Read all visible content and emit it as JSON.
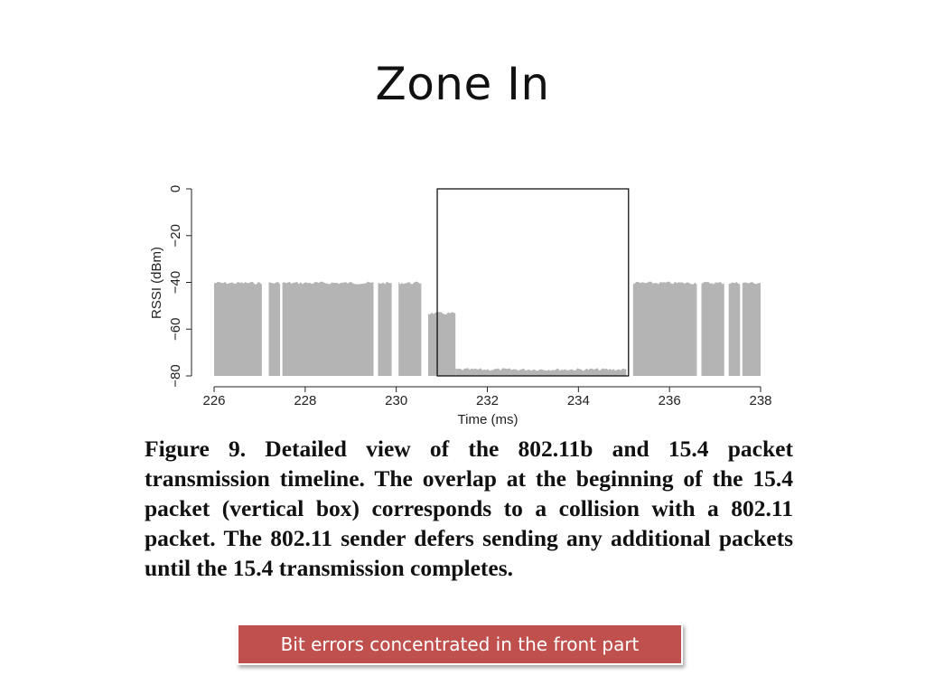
{
  "slide": {
    "title": "Zone In",
    "caption": "Figure 9. Detailed view of the 802.11b and 15.4 packet transmission timeline. The overlap at the beginning of the 15.4 packet (vertical box) corresponds to a collision with a 802.11 packet. The 802.11 sender defers sending any additional packets until the 15.4 transmission completes.",
    "callout": "Bit errors concentrated in the front part"
  },
  "colors": {
    "signal": "#b4b4b4",
    "callout_bg": "#c0504d"
  },
  "chart_data": {
    "type": "area",
    "xlabel": "Time (ms)",
    "ylabel": "RSSI (dBm)",
    "xlim": [
      226,
      238
    ],
    "ylim": [
      -80,
      0
    ],
    "xticks": [
      "226",
      "228",
      "230",
      "232",
      "234",
      "236",
      "238"
    ],
    "yticks": [
      "0",
      "−20",
      "−40",
      "−60",
      "−80"
    ],
    "grid": false,
    "segments": [
      {
        "start": 226.0,
        "end": 227.05,
        "rssi": -40
      },
      {
        "start": 227.2,
        "end": 227.45,
        "rssi": -40
      },
      {
        "start": 227.5,
        "end": 229.5,
        "rssi": -40
      },
      {
        "start": 229.6,
        "end": 229.9,
        "rssi": -40
      },
      {
        "start": 230.05,
        "end": 230.55,
        "rssi": -40
      },
      {
        "start": 230.7,
        "end": 231.3,
        "rssi": -53
      },
      {
        "start": 231.3,
        "end": 235.05,
        "rssi": -77
      },
      {
        "start": 235.2,
        "end": 236.6,
        "rssi": -40
      },
      {
        "start": 236.7,
        "end": 237.2,
        "rssi": -40
      },
      {
        "start": 237.3,
        "end": 237.55,
        "rssi": -40
      },
      {
        "start": 237.6,
        "end": 238.0,
        "rssi": -40
      }
    ],
    "annotation_box": {
      "x_start": 230.9,
      "x_end": 235.1,
      "y_low": -80,
      "y_high": 0
    }
  }
}
